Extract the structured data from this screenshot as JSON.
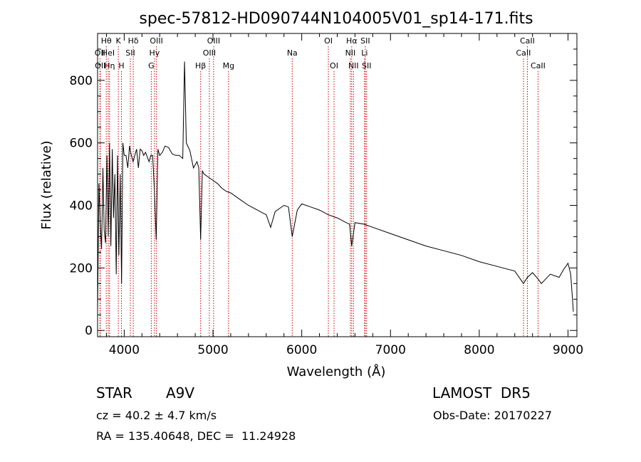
{
  "chart_data": {
    "type": "line",
    "title": "spec-57812-HD090744N104005V01_sp14-171.fits",
    "xlabel": "Wavelength (Å)",
    "ylabel": "Flux (relative)",
    "xlim": [
      3700,
      9100
    ],
    "ylim": [
      -20,
      950
    ],
    "x_ticks": [
      4000,
      5000,
      6000,
      7000,
      8000,
      9000
    ],
    "y_ticks": [
      0,
      200,
      400,
      600,
      800
    ],
    "grid": false,
    "line_color": "#000000",
    "marker_color": "#cc0000",
    "series": [
      {
        "x": [
          3700,
          3715,
          3730,
          3745,
          3760,
          3775,
          3790,
          3805,
          3820,
          3835,
          3850,
          3865,
          3880,
          3895,
          3910,
          3925,
          3940,
          3955,
          3970,
          3985,
          4000,
          4020,
          4040,
          4060,
          4080,
          4100,
          4120,
          4140,
          4160,
          4180,
          4200,
          4220,
          4240,
          4260,
          4280,
          4300,
          4320,
          4340,
          4360,
          4380,
          4400,
          4430,
          4460,
          4500,
          4540,
          4580,
          4620,
          4660,
          4680,
          4700,
          4740,
          4780,
          4820,
          4840,
          4861,
          4880,
          4900,
          4950,
          5000,
          5050,
          5100,
          5150,
          5200,
          5300,
          5400,
          5500,
          5600,
          5650,
          5700,
          5750,
          5800,
          5850,
          5893,
          5950,
          6000,
          6100,
          6200,
          6300,
          6400,
          6500,
          6540,
          6563,
          6600,
          6700,
          6800,
          7000,
          7200,
          7400,
          7600,
          7800,
          8000,
          8200,
          8400,
          8498,
          8542,
          8600,
          8662,
          8700,
          8800,
          8900,
          8950,
          9000,
          9030,
          9050,
          9060
        ],
        "y": [
          60,
          470,
          350,
          260,
          520,
          320,
          280,
          560,
          300,
          600,
          270,
          580,
          360,
          500,
          180,
          560,
          240,
          500,
          150,
          600,
          560,
          560,
          520,
          590,
          560,
          540,
          560,
          580,
          520,
          580,
          575,
          560,
          570,
          555,
          540,
          560,
          560,
          450,
          290,
          580,
          560,
          570,
          590,
          585,
          565,
          560,
          560,
          550,
          860,
          600,
          575,
          520,
          540,
          520,
          290,
          510,
          500,
          490,
          480,
          470,
          455,
          445,
          440,
          420,
          400,
          385,
          370,
          330,
          380,
          390,
          400,
          395,
          300,
          385,
          405,
          395,
          385,
          370,
          360,
          345,
          340,
          270,
          345,
          340,
          330,
          310,
          290,
          270,
          255,
          240,
          220,
          205,
          190,
          150,
          170,
          185,
          165,
          150,
          180,
          170,
          195,
          215,
          180,
          100,
          60
        ]
      }
    ],
    "line_markers": [
      {
        "label": "Hθ",
        "x": 3798,
        "row": 0
      },
      {
        "label": "OII",
        "x": 3727,
        "row": 1
      },
      {
        "label": "OII",
        "x": 3730,
        "row": 2
      },
      {
        "label": "HeI",
        "x": 3820,
        "row": 1
      },
      {
        "label": "Hη",
        "x": 3835,
        "row": 2
      },
      {
        "label": "K",
        "x": 3934,
        "row": 0
      },
      {
        "label": "H",
        "x": 3969,
        "row": 2
      },
      {
        "label": "SII",
        "x": 4069,
        "row": 1
      },
      {
        "label": "Hδ",
        "x": 4102,
        "row": 0
      },
      {
        "label": "OIII",
        "x": 4363,
        "row": 0
      },
      {
        "label": "Hγ",
        "x": 4341,
        "row": 1
      },
      {
        "label": "G",
        "x": 4305,
        "row": 2
      },
      {
        "label": "Hβ",
        "x": 4861,
        "row": 2
      },
      {
        "label": "OIII",
        "x": 5007,
        "row": 0
      },
      {
        "label": "OIII",
        "x": 4959,
        "row": 1
      },
      {
        "label": "Mg",
        "x": 5175,
        "row": 2
      },
      {
        "label": "Na",
        "x": 5893,
        "row": 1
      },
      {
        "label": "OI",
        "x": 6300,
        "row": 0
      },
      {
        "label": "OI",
        "x": 6364,
        "row": 2
      },
      {
        "label": "Hα",
        "x": 6563,
        "row": 0
      },
      {
        "label": "NII",
        "x": 6548,
        "row": 1
      },
      {
        "label": "NII",
        "x": 6583,
        "row": 2
      },
      {
        "label": "SII",
        "x": 6716,
        "row": 0
      },
      {
        "label": "Li",
        "x": 6708,
        "row": 1
      },
      {
        "label": "SII",
        "x": 6731,
        "row": 2
      },
      {
        "label": "CaII",
        "x": 8542,
        "row": 0
      },
      {
        "label": "CaII",
        "x": 8498,
        "row": 1
      },
      {
        "label": "CaII",
        "x": 8662,
        "row": 2
      }
    ]
  },
  "info": {
    "object_class": "STAR",
    "subclass": "A9V",
    "survey": "LAMOST  DR5",
    "redshift": "cz = 40.2 ± 4.7 km/s",
    "obs_date": "Obs-Date: 20170227",
    "coords": "RA = 135.40648, DEC =  11.24928"
  }
}
